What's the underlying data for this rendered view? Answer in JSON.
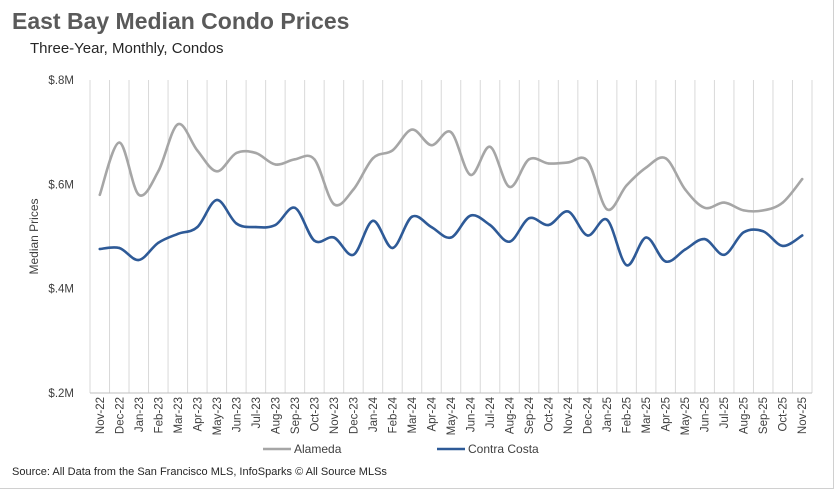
{
  "chart_data": {
    "type": "line",
    "title": "East Bay Median Condo Prices",
    "subtitle": "Three-Year, Monthly, Condos",
    "ylabel": "Median Prices",
    "xlabel": "",
    "ylim": [
      200000,
      800000
    ],
    "yticks": [
      200000,
      400000,
      600000,
      800000
    ],
    "ytick_labels": [
      "$.2M",
      "$.4M",
      "$.6M",
      "$.8M"
    ],
    "categories": [
      "Nov-22",
      "Dec-22",
      "Jan-23",
      "Feb-23",
      "Mar-23",
      "Apr-23",
      "May-23",
      "Jun-23",
      "Jul-23",
      "Aug-23",
      "Sep-23",
      "Oct-23",
      "Nov-23",
      "Dec-23",
      "Jan-24",
      "Feb-24",
      "Mar-24",
      "Apr-24",
      "May-24",
      "Jun-24",
      "Jul-24",
      "Aug-24",
      "Sep-24",
      "Oct-24",
      "Nov-24",
      "Dec-24",
      "Jan-25",
      "Feb-25",
      "Mar-25",
      "Apr-25",
      "May-25",
      "Jun-25",
      "Jul-25",
      "Aug-25",
      "Sep-25",
      "Oct-25",
      "Nov-25"
    ],
    "series": [
      {
        "name": "Alameda",
        "color": "#a6a6a6",
        "values": [
          580000,
          680000,
          580000,
          625000,
          715000,
          665000,
          625000,
          660000,
          660000,
          638000,
          648000,
          648000,
          562000,
          590000,
          650000,
          665000,
          705000,
          675000,
          700000,
          618000,
          672000,
          595000,
          648000,
          640000,
          642000,
          645000,
          552000,
          598000,
          632000,
          650000,
          590000,
          555000,
          565000,
          550000,
          550000,
          565000,
          610000
        ]
      },
      {
        "name": "Contra Costa",
        "color": "#2e5a97",
        "values": [
          476000,
          478000,
          455000,
          488000,
          505000,
          518000,
          570000,
          525000,
          518000,
          522000,
          555000,
          492000,
          498000,
          465000,
          530000,
          478000,
          538000,
          518000,
          498000,
          540000,
          522000,
          490000,
          535000,
          522000,
          548000,
          502000,
          532000,
          445000,
          498000,
          452000,
          475000,
          495000,
          465000,
          508000,
          510000,
          482000,
          502000
        ]
      }
    ],
    "legend": "bottom",
    "grid": "vertical"
  },
  "source": "Source: All Data from the San Francisco MLS, InfoSparks © All Source MLSs"
}
